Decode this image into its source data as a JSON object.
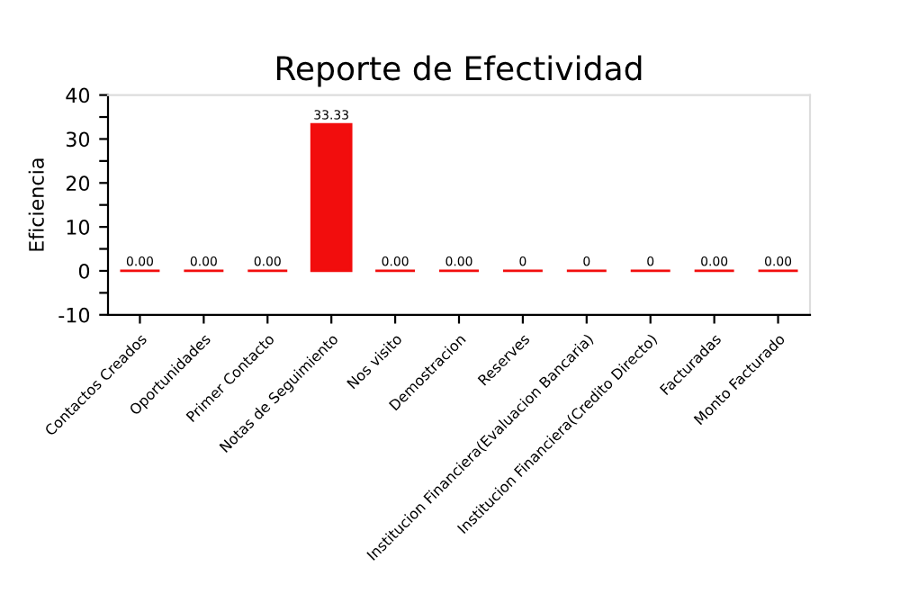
{
  "chart_data": {
    "type": "bar",
    "title": "Reporte de Efectividad",
    "ylabel": "Eficiencia",
    "categories": [
      "Contactos Creados",
      "Oportunidades",
      "Primer Contacto",
      "Notas de Seguimiento",
      "Nos visito",
      "Demostracion",
      "Reserves",
      "Institucion Financiera(Evaluacion Bancaria)",
      "Institucion Financiera(Credito Directo)",
      "Facturadas",
      "Monto Facturado"
    ],
    "values": [
      0,
      0,
      0,
      33.33,
      0,
      0,
      0,
      0,
      0,
      0,
      0
    ],
    "value_labels": [
      "0.00",
      "0.00",
      "0.00",
      "33.33",
      "0.00",
      "0.00",
      "0",
      "0",
      "0",
      "0.00",
      "0.00"
    ],
    "color": "#f20d0d",
    "ylim": [
      -10,
      40
    ],
    "yticks": [
      -10,
      {
        "value": -5,
        "label": null
      },
      0,
      {
        "value": 5,
        "label": null
      },
      10,
      {
        "value": 15,
        "label": null
      },
      20,
      {
        "value": 25,
        "label": null
      },
      30,
      {
        "value": 35,
        "label": null
      },
      40
    ],
    "grid": false,
    "legend": false
  }
}
